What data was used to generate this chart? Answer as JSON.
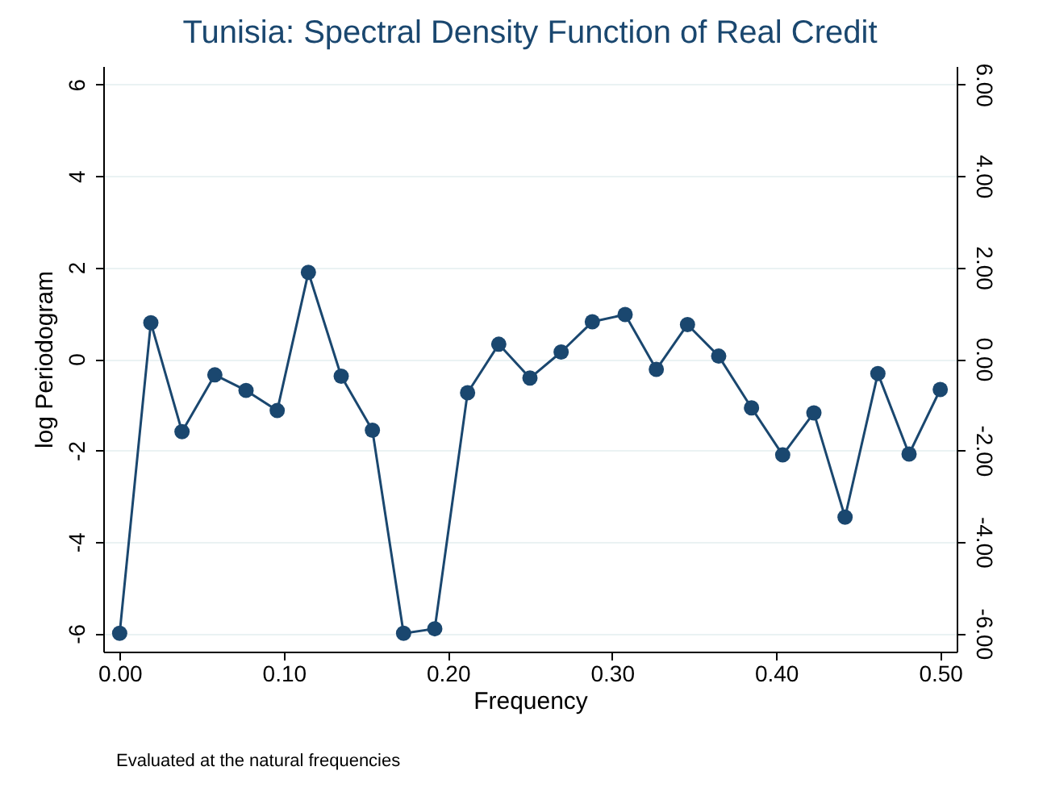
{
  "chart_data": {
    "type": "line",
    "title": "Tunisia: Spectral Density Function of Real Credit",
    "xlabel": "Frequency",
    "ylabel": "log Periodogram",
    "annotations": [
      "Evaluated at the natural frequencies"
    ],
    "x": [
      0,
      0.019,
      0.038,
      0.058,
      0.077,
      0.096,
      0.115,
      0.135,
      0.154,
      0.173,
      0.192,
      0.212,
      0.231,
      0.25,
      0.269,
      0.288,
      0.308,
      0.327,
      0.346,
      0.365,
      0.385,
      0.404,
      0.423,
      0.442,
      0.462,
      0.481,
      0.5
    ],
    "series": [
      {
        "color": "#1a476f",
        "values": [
          -6.0,
          0.79,
          -1.59,
          -0.35,
          -0.69,
          -1.13,
          1.89,
          -0.38,
          -1.56,
          -6.0,
          -5.9,
          -0.74,
          0.32,
          -0.42,
          0.15,
          0.81,
          0.97,
          -0.23,
          0.75,
          0.06,
          -1.07,
          -2.1,
          -1.18,
          -3.46,
          -0.32,
          -2.08,
          -0.67
        ]
      }
    ],
    "xlim": [
      -0.01,
      0.51
    ],
    "xticks": [
      {
        "value": 0,
        "label": "0.00"
      },
      {
        "value": 0.1,
        "label": "0.10"
      },
      {
        "value": 0.2,
        "label": "0.20"
      },
      {
        "value": 0.3,
        "label": "0.30"
      },
      {
        "value": 0.4,
        "label": "0.40"
      },
      {
        "value": 0.5,
        "label": "0.50"
      }
    ],
    "ylim": [
      -6.4,
      6.4
    ],
    "yticks": [
      -6,
      -4,
      -2,
      0,
      2,
      4,
      6
    ],
    "y2lim": [
      -6.4,
      6.4
    ],
    "y2ticks": [
      {
        "value": -6,
        "label": "-6.00"
      },
      {
        "value": -4,
        "label": "-4.00"
      },
      {
        "value": -2,
        "label": "-2.00"
      },
      {
        "value": 0,
        "label": "0.00"
      },
      {
        "value": 2,
        "label": "2.00"
      },
      {
        "value": 4,
        "label": "4.00"
      },
      {
        "value": 6,
        "label": "6.00"
      }
    ],
    "grid": "y",
    "marker": "circle",
    "line_style": "solid",
    "legend": false
  }
}
